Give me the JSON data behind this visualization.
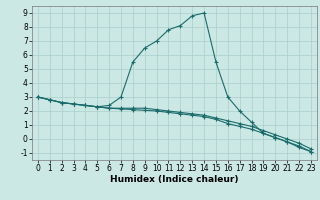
{
  "xlabel": "Humidex (Indice chaleur)",
  "ylabel": "",
  "background_color": "#cce8e4",
  "line_color": "#1a6b6b",
  "grid_color": "#aacfcc",
  "xlim": [
    -0.5,
    23.5
  ],
  "ylim": [
    -1.5,
    9.5
  ],
  "xticks": [
    0,
    1,
    2,
    3,
    4,
    5,
    6,
    7,
    8,
    9,
    10,
    11,
    12,
    13,
    14,
    15,
    16,
    17,
    18,
    19,
    20,
    21,
    22,
    23
  ],
  "yticks": [
    -1,
    0,
    1,
    2,
    3,
    4,
    5,
    6,
    7,
    8,
    9
  ],
  "line1_x": [
    0,
    1,
    2,
    3,
    4,
    5,
    6,
    7,
    8,
    9,
    10,
    11,
    12,
    13,
    14,
    15,
    16,
    17,
    18,
    19,
    20,
    21,
    22,
    23
  ],
  "line1_y": [
    3.0,
    2.8,
    2.6,
    2.5,
    2.4,
    2.3,
    2.4,
    3.0,
    5.5,
    6.5,
    7.0,
    7.8,
    8.1,
    8.8,
    9.0,
    5.5,
    3.0,
    2.0,
    1.2,
    0.4,
    0.1,
    -0.2,
    -0.6,
    -0.9
  ],
  "line2_x": [
    0,
    1,
    2,
    3,
    4,
    5,
    6,
    7,
    8,
    9,
    10,
    11,
    12,
    13,
    14,
    15,
    16,
    17,
    18,
    19,
    20,
    21,
    22,
    23
  ],
  "line2_y": [
    3.0,
    2.8,
    2.6,
    2.5,
    2.4,
    2.3,
    2.2,
    2.2,
    2.2,
    2.2,
    2.1,
    2.0,
    1.9,
    1.8,
    1.7,
    1.5,
    1.3,
    1.1,
    0.9,
    0.6,
    0.3,
    0.0,
    -0.3,
    -0.7
  ],
  "line3_x": [
    0,
    1,
    2,
    3,
    4,
    5,
    6,
    7,
    8,
    9,
    10,
    11,
    12,
    13,
    14,
    15,
    16,
    17,
    18,
    19,
    20,
    21,
    22,
    23
  ],
  "line3_y": [
    3.0,
    2.8,
    2.6,
    2.5,
    2.4,
    2.3,
    2.2,
    2.15,
    2.1,
    2.05,
    2.0,
    1.9,
    1.8,
    1.7,
    1.6,
    1.4,
    1.1,
    0.9,
    0.7,
    0.4,
    0.1,
    -0.2,
    -0.5,
    -0.9
  ],
  "tick_fontsize": 5.5,
  "xlabel_fontsize": 6.5,
  "marker_size": 3,
  "linewidth": 0.8
}
